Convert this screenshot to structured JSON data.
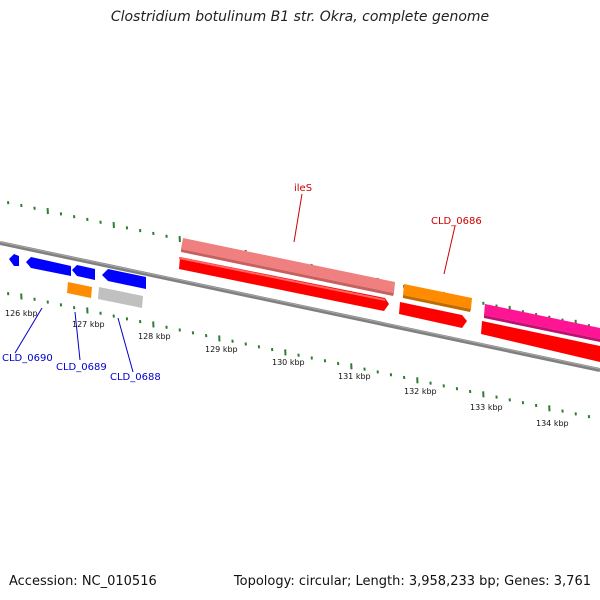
{
  "title": "Clostridium botulinum B1 str. Okra, complete genome",
  "accession_text": "Accession: NC_010516",
  "summary_text": "Topology: circular; Length: 3,958,233 bp; Genes: 3,761",
  "colors": {
    "backbone": "#808080",
    "ticks": "#2e7d32",
    "blue_gene": "#0000ff",
    "orange_gene": "#ff8c00",
    "gray_gene": "#c0c0c0",
    "pink_gene": "#f08080",
    "red_gene": "#ff0000",
    "magenta_gene": "#ff1493",
    "blue_label": "#0000cc",
    "red_label": "#cc0000"
  },
  "ticks": [
    {
      "label": "126 kbp"
    },
    {
      "label": "127 kbp"
    },
    {
      "label": "128 kbp"
    },
    {
      "label": "129 kbp"
    },
    {
      "label": "130 kbp"
    },
    {
      "label": "131 kbp"
    },
    {
      "label": "132 kbp"
    },
    {
      "label": "133 kbp"
    },
    {
      "label": "134 kbp"
    }
  ],
  "gene_labels": [
    {
      "text": "CLD_0690",
      "color": "blue"
    },
    {
      "text": "CLD_0689",
      "color": "blue"
    },
    {
      "text": "CLD_0688",
      "color": "blue"
    },
    {
      "text": "ileS",
      "color": "red"
    },
    {
      "text": "CLD_0686",
      "color": "red"
    }
  ]
}
